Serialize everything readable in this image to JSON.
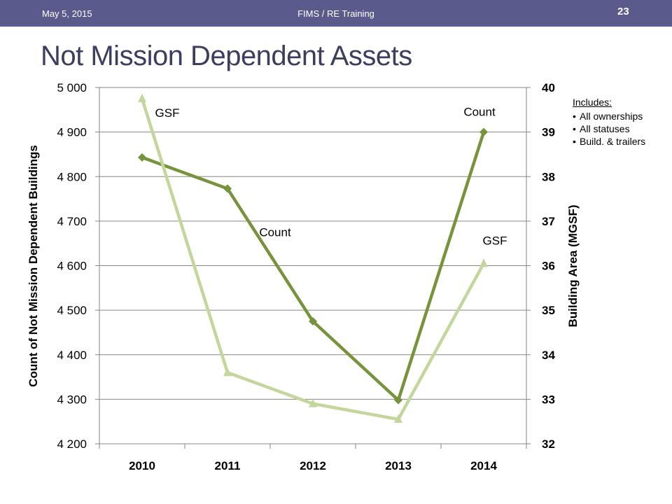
{
  "header": {
    "date": "May 5, 2015",
    "center": "FIMS / RE Training",
    "page_number": "23",
    "bar_color": "#5b5a8c"
  },
  "slide": {
    "title": "Not Mission Dependent Assets"
  },
  "notes": {
    "heading": "Includes",
    "heading_suffix": ":",
    "items": [
      "All ownerships",
      "All statuses",
      "Build. & trailers"
    ]
  },
  "chart_data": {
    "type": "line",
    "categories": [
      "2010",
      "2011",
      "2012",
      "2013",
      "2014"
    ],
    "ylabel": "Count of Not Mission Dependent Buildings",
    "y2label": "Building Area (MGSF)",
    "ylim": [
      4200,
      5000
    ],
    "y2lim": [
      32,
      40
    ],
    "yticks": [
      "4 200",
      "4 300",
      "4 400",
      "4 500",
      "4 600",
      "4 700",
      "4 800",
      "4 900",
      "5 000"
    ],
    "y2ticks": [
      "32",
      "33",
      "34",
      "35",
      "36",
      "37",
      "38",
      "39",
      "40"
    ],
    "grid": true,
    "series": [
      {
        "name": "Count",
        "axis": "left",
        "marker": "diamond",
        "color": "#77933c",
        "values": [
          4843,
          4773,
          4475,
          4298,
          4900
        ]
      },
      {
        "name": "GSF",
        "axis": "right",
        "marker": "triangle",
        "color": "#c3d69b",
        "values": [
          39.75,
          33.6,
          32.9,
          32.55,
          36.05
        ]
      }
    ],
    "annotations": [
      {
        "text": "GSF",
        "series": "GSF",
        "index": 0
      },
      {
        "text": "Count",
        "series": "Count",
        "index": 1
      },
      {
        "text": "Count",
        "series": "Count",
        "index": 4
      },
      {
        "text": "GSF",
        "series": "GSF",
        "index": 4
      }
    ]
  }
}
